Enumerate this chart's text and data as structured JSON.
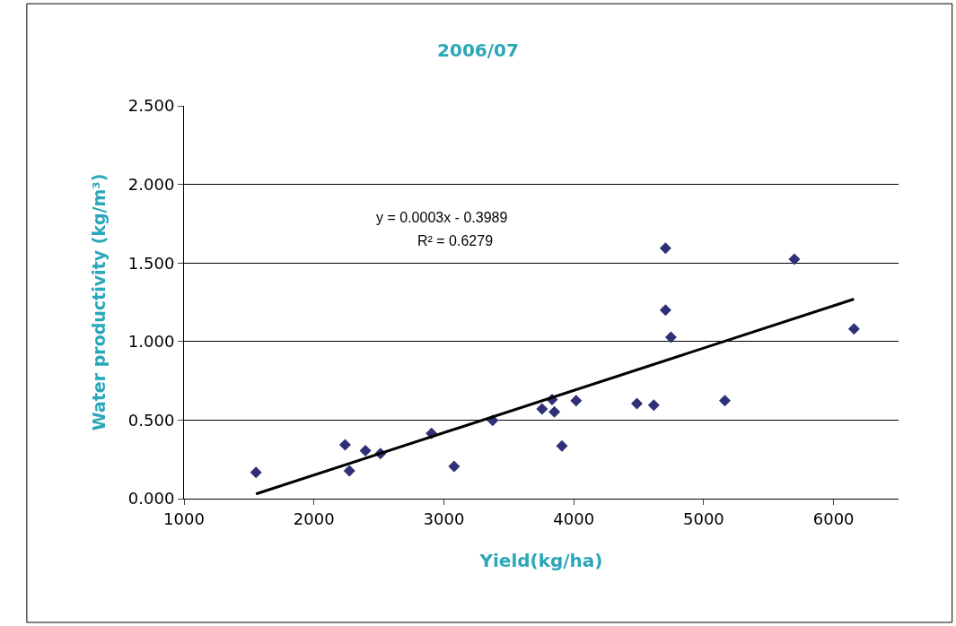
{
  "chart_data": {
    "type": "scatter",
    "title": "2006/07",
    "xlabel": "Yield(kg/ha)",
    "ylabel": "Water productivity (kg/m³)",
    "annotations": [
      "y = 0.0003x - 0.3989",
      "R² = 0.6279"
    ],
    "series": [
      {
        "color": "#2e3176",
        "marker": "diamond",
        "x": [
          1554,
          2240,
          2273,
          2396,
          2512,
          2905,
          3079,
          3376,
          3756,
          3833,
          3851,
          3909,
          4018,
          4486,
          4616,
          4706,
          4706,
          4748,
          5163,
          5698,
          6157
        ],
        "values": [
          0.167,
          0.342,
          0.177,
          0.306,
          0.287,
          0.415,
          0.205,
          0.498,
          0.571,
          0.63,
          0.552,
          0.335,
          0.624,
          0.605,
          0.595,
          1.594,
          1.2,
          1.027,
          0.624,
          1.524,
          1.08
        ]
      },
      {
        "type": "line",
        "color": "#000000",
        "marker": "none",
        "x": [
          1554,
          6157
        ],
        "values": [
          0.03,
          1.27
        ]
      }
    ],
    "xlim": [
      1000,
      6500
    ],
    "xticks": [
      1000,
      2000,
      3000,
      4000,
      5000,
      6000
    ],
    "ylim": [
      0,
      2.5
    ],
    "yticks": [
      {
        "value": 0,
        "label": "0.000"
      },
      {
        "value": 0.5,
        "label": "0.500"
      },
      {
        "value": 1,
        "label": "1.000"
      },
      {
        "value": 1.5,
        "label": "1.500"
      },
      {
        "value": 2,
        "label": "2.000"
      },
      {
        "value": 2.5,
        "label": "2.500"
      }
    ],
    "grid": "y"
  }
}
